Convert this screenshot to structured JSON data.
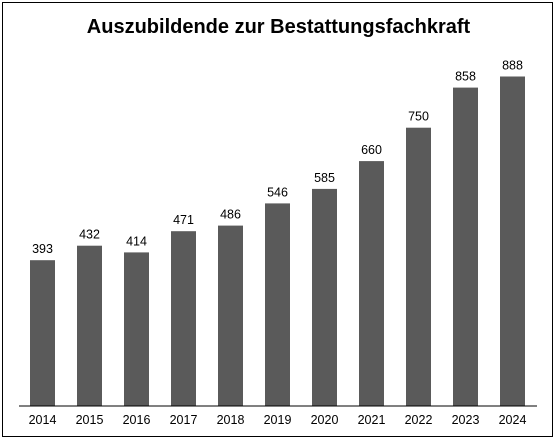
{
  "chart_data": {
    "type": "bar",
    "title": "Auszubildende zur Bestattungsfachkraft",
    "xlabel": "",
    "ylabel": "",
    "categories": [
      "2014",
      "2015",
      "2016",
      "2017",
      "2018",
      "2019",
      "2020",
      "2021",
      "2022",
      "2023",
      "2024"
    ],
    "values": [
      393,
      432,
      414,
      471,
      486,
      546,
      585,
      660,
      750,
      858,
      888
    ],
    "ylim": [
      0,
      900
    ],
    "grid": false,
    "legend": "none",
    "data_labels": true,
    "colors": {
      "bar": "#5a5a5a",
      "axis": "#000000",
      "text": "#000000",
      "frame": "#000000"
    }
  }
}
